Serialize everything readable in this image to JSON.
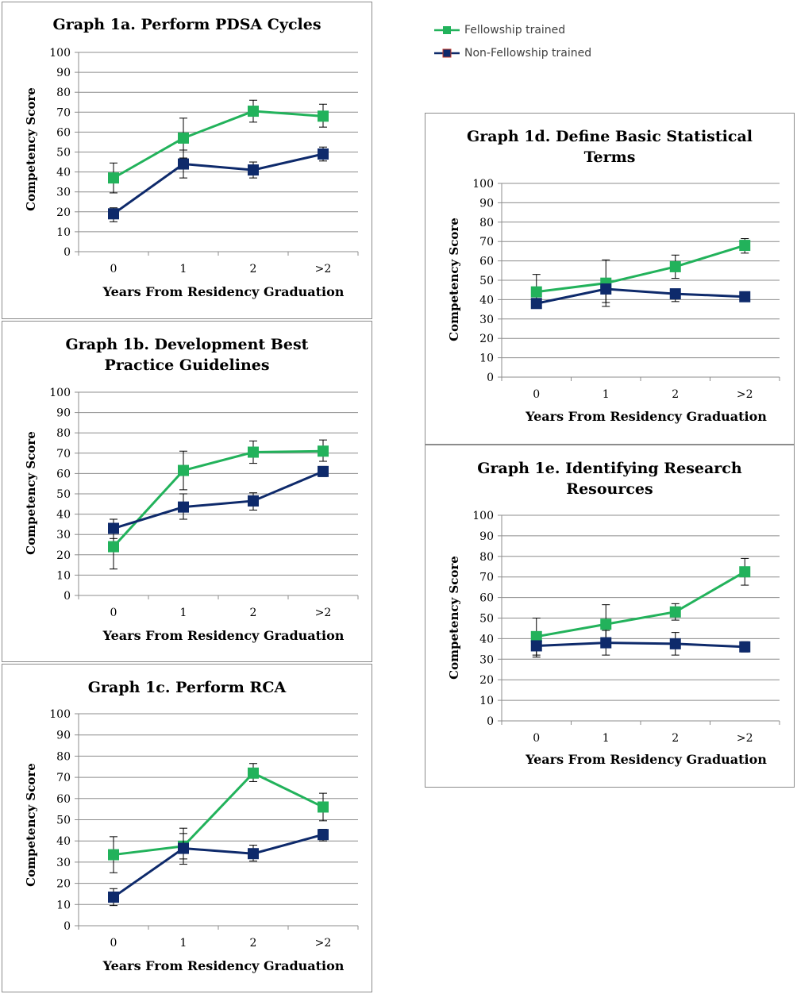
{
  "legend": {
    "fellowship_label": "Fellowship trained",
    "non_fellowship_label": "Non-Fellowship trained"
  },
  "colors": {
    "fellowship": "#22b25b",
    "non_fellowship": "#0e2a6b",
    "grid": "#8c8c8c"
  },
  "chart_data": [
    {
      "id": "a",
      "type": "line",
      "title": "Graph 1a. Perform PDSA Cycles",
      "xlabel": "Years From Residency Graduation",
      "ylabel": "Competency Score",
      "categories": [
        "0",
        "1",
        "2",
        ">2"
      ],
      "ylim": [
        0,
        100
      ],
      "yticks": [
        0,
        10,
        20,
        30,
        40,
        50,
        60,
        70,
        80,
        90,
        100
      ],
      "grid": true,
      "series": [
        {
          "name": "Fellowship trained",
          "values": [
            37,
            57,
            70.5,
            68
          ],
          "err_high": [
            44.5,
            67,
            76,
            74
          ],
          "err_low": [
            29.5,
            47,
            65,
            62.5
          ]
        },
        {
          "name": "Non-Fellowship trained",
          "values": [
            19,
            44,
            41,
            49
          ],
          "err_high": [
            22,
            51,
            45,
            52.5
          ],
          "err_low": [
            15,
            37,
            37,
            45.5
          ]
        }
      ]
    },
    {
      "id": "b",
      "type": "line",
      "title": "Graph 1b. Development Best\nPractice Guidelines",
      "xlabel": "Years From Residency Graduation",
      "ylabel": "Competency Score",
      "categories": [
        "0",
        "1",
        "2",
        ">2"
      ],
      "ylim": [
        0,
        100
      ],
      "yticks": [
        0,
        10,
        20,
        30,
        40,
        50,
        60,
        70,
        80,
        90,
        100
      ],
      "grid": true,
      "series": [
        {
          "name": "Fellowship trained",
          "values": [
            24,
            61.5,
            70.5,
            71
          ],
          "err_high": [
            35.5,
            71,
            76,
            76.5
          ],
          "err_low": [
            13,
            52,
            65,
            66
          ]
        },
        {
          "name": "Non-Fellowship trained",
          "values": [
            33,
            43.5,
            46.5,
            61
          ],
          "err_high": [
            37.5,
            50,
            50.5,
            63.5
          ],
          "err_low": [
            28,
            37.5,
            42,
            58.5
          ]
        }
      ]
    },
    {
      "id": "c",
      "type": "line",
      "title": "Graph 1c. Perform RCA",
      "xlabel": "Years From Residency Graduation",
      "ylabel": "Competency Score",
      "categories": [
        "0",
        "1",
        "2",
        ">2"
      ],
      "ylim": [
        0,
        100
      ],
      "yticks": [
        0,
        10,
        20,
        30,
        40,
        50,
        60,
        70,
        80,
        90,
        100
      ],
      "grid": true,
      "series": [
        {
          "name": "Fellowship trained",
          "values": [
            33.5,
            37.5,
            72,
            56
          ],
          "err_high": [
            42,
            43.5,
            76.5,
            62.5
          ],
          "err_low": [
            25,
            31.5,
            68,
            49.5
          ]
        },
        {
          "name": "Non-Fellowship trained",
          "values": [
            13.5,
            36.5,
            34,
            43
          ],
          "err_high": [
            17.5,
            46,
            38,
            45.5
          ],
          "err_low": [
            9.5,
            29,
            30.5,
            40
          ]
        }
      ]
    },
    {
      "id": "d",
      "type": "line",
      "title": "Graph 1d. Define Basic Statistical\nTerms",
      "xlabel": "Years From Residency Graduation",
      "ylabel": "Competency Score",
      "categories": [
        "0",
        "1",
        "2",
        ">2"
      ],
      "ylim": [
        0,
        100
      ],
      "yticks": [
        0,
        10,
        20,
        30,
        40,
        50,
        60,
        70,
        80,
        90,
        100
      ],
      "grid": true,
      "series": [
        {
          "name": "Fellowship trained",
          "values": [
            44,
            48.5,
            57,
            68
          ],
          "err_high": [
            53,
            60.5,
            63,
            71.5
          ],
          "err_low": [
            35.5,
            36.5,
            51,
            64
          ]
        },
        {
          "name": "Non-Fellowship trained",
          "values": [
            38,
            45.5,
            43,
            41.5
          ],
          "err_high": [
            40.5,
            47.5,
            45.5,
            44
          ],
          "err_low": [
            35.5,
            38.5,
            39,
            39
          ]
        }
      ]
    },
    {
      "id": "e",
      "type": "line",
      "title": "Graph 1e. Identifying Research\nResources",
      "xlabel": "Years From Residency Graduation",
      "ylabel": "Competency Score",
      "categories": [
        "0",
        "1",
        "2",
        ">2"
      ],
      "ylim": [
        0,
        100
      ],
      "yticks": [
        0,
        10,
        20,
        30,
        40,
        50,
        60,
        70,
        80,
        90,
        100
      ],
      "grid": true,
      "series": [
        {
          "name": "Fellowship trained",
          "values": [
            41,
            47,
            53,
            72.5
          ],
          "err_high": [
            50,
            56.5,
            57,
            79
          ],
          "err_low": [
            32,
            38,
            49,
            66
          ]
        },
        {
          "name": "Non-Fellowship trained",
          "values": [
            36.5,
            38,
            37.5,
            36
          ],
          "err_high": [
            39,
            44,
            43,
            38.5
          ],
          "err_low": [
            31,
            32,
            32,
            33.5
          ]
        }
      ]
    }
  ]
}
